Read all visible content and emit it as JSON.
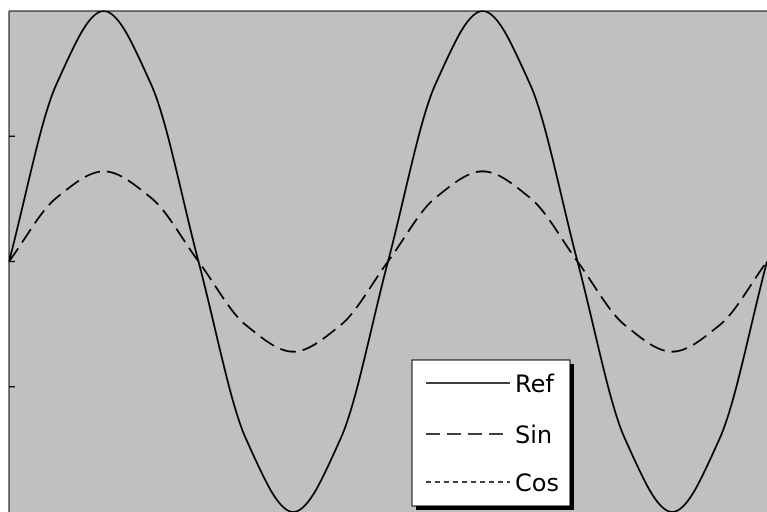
{
  "chart_data": {
    "type": "line",
    "title": "",
    "xlabel": "",
    "ylabel": "",
    "x_range": [
      0,
      4
    ],
    "y_range": [
      -1,
      1
    ],
    "x_ticks": [],
    "y_ticks": [
      -0.5,
      0,
      0.5
    ],
    "grid": false,
    "legend_position": "bottom-right",
    "background_color": "#c0c0c0",
    "series": [
      {
        "name": "Ref",
        "style": "solid",
        "color": "#000000",
        "x": [
          0,
          0.25,
          0.5,
          0.75,
          1,
          1.25,
          1.5,
          1.75,
          2,
          2.25,
          2.5,
          2.75,
          3,
          3.25,
          3.5,
          3.75,
          4
        ],
        "values": [
          0,
          0.707,
          1,
          0.707,
          0,
          -0.707,
          -1,
          -0.707,
          0,
          0.707,
          1,
          0.707,
          0,
          -0.707,
          -1,
          -0.707,
          0
        ]
      },
      {
        "name": "Sin",
        "style": "dashed",
        "color": "#000000",
        "x": [
          0,
          0.25,
          0.5,
          0.75,
          1,
          1.25,
          1.5,
          1.75,
          2,
          2.25,
          2.5,
          2.75,
          3,
          3.25,
          3.5,
          3.75,
          4
        ],
        "values": [
          0,
          0.254,
          0.36,
          0.254,
          0,
          -0.254,
          -0.36,
          -0.254,
          0,
          0.254,
          0.36,
          0.254,
          0,
          -0.254,
          -0.36,
          -0.254,
          0
        ]
      },
      {
        "name": "Cos",
        "style": "dotted",
        "color": "#000000",
        "x": [],
        "values": []
      }
    ]
  }
}
